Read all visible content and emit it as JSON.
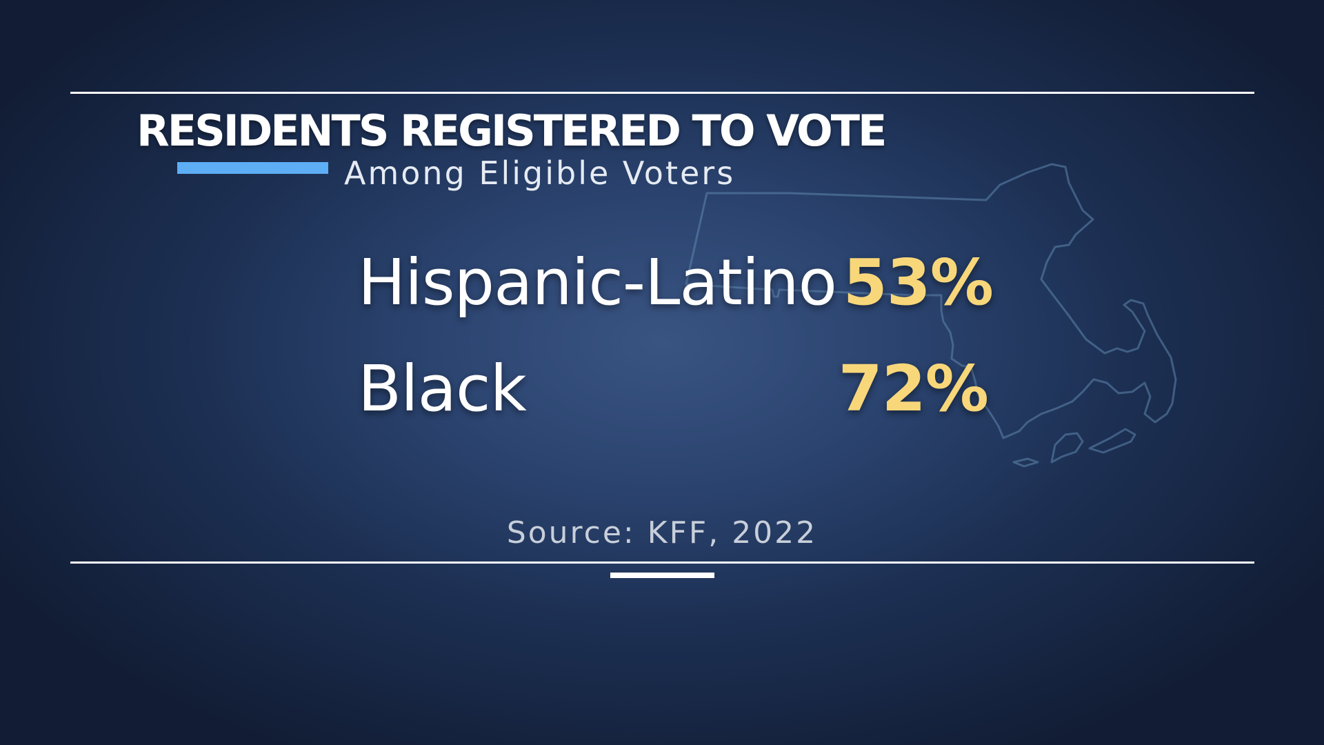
{
  "title": "RESIDENTS REGISTERED TO VOTE",
  "subtitle": "Among Eligible Voters",
  "rows": [
    {
      "label": "Hispanic-Latino",
      "value": "53%"
    },
    {
      "label": "Black",
      "value": "72%"
    }
  ],
  "source": "Source: KFF, 2022",
  "map_icon": "massachusetts-outline-icon",
  "colors": {
    "accent": "#5eaef5",
    "value": "#f8d77a",
    "background": "#1c2f52",
    "rules": "#ffffff"
  }
}
